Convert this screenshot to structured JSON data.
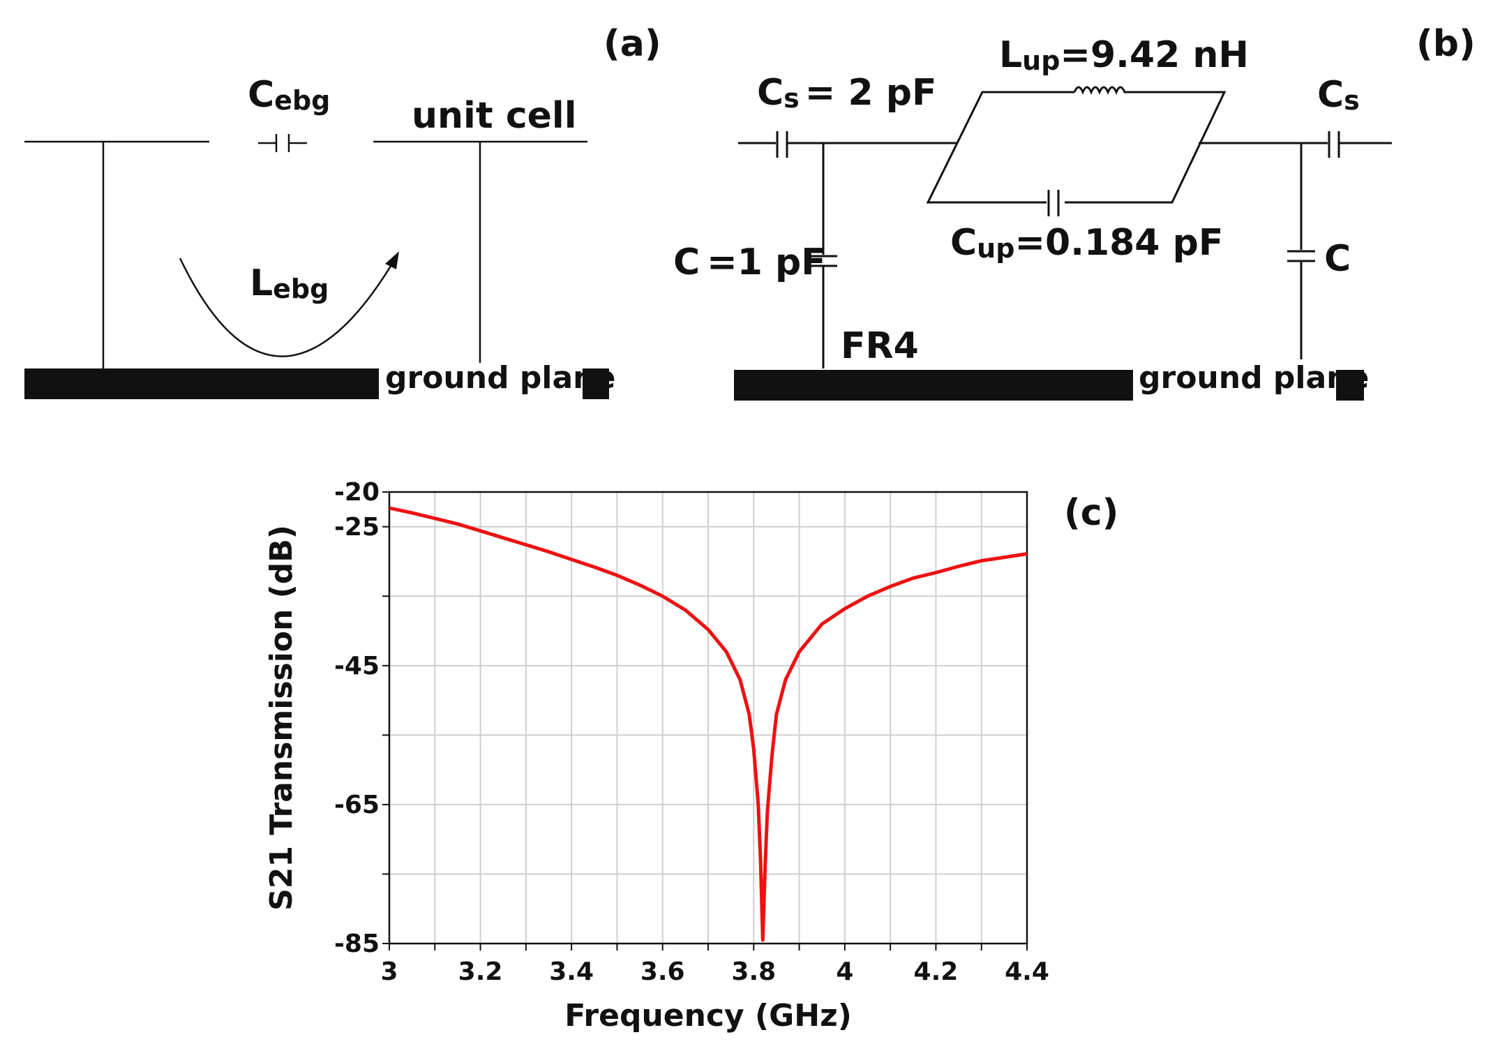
{
  "panel_a": {
    "tag": "(a)",
    "cap_label_main": "C",
    "cap_label_sub": "ebg",
    "ind_label_main": "L",
    "ind_label_sub": "ebg",
    "unit_cell": "unit cell",
    "ground": "ground plane"
  },
  "panel_b": {
    "tag": "(b)",
    "cs_main": "C",
    "cs_sub": "s",
    "cs_value": "= 2 pF",
    "lup_main": "L",
    "lup_sub": "up",
    "lup_value": "=9.42 nH",
    "cs2_main": "C",
    "cs2_sub": "s",
    "c_label": "C",
    "c_value": "=1 pF",
    "c2_label": "C",
    "cup_main": "C",
    "cup_sub": "up",
    "cup_value": "=0.184 pF",
    "substrate": "FR4",
    "ground": "ground plane"
  },
  "panel_c": {
    "tag": "(c)"
  },
  "chart_data": {
    "type": "line",
    "xlabel": "Frequency (GHz)",
    "ylabel": "S21 Transmission (dB)",
    "xlim": [
      3,
      4.4
    ],
    "ylim": [
      -85,
      -20
    ],
    "x_ticks": [
      "3",
      "3.2",
      "3.4",
      "3.6",
      "3.8",
      "4",
      "4.2",
      "4.4"
    ],
    "y_ticks": [
      "-20",
      "-25",
      "-45",
      "-65",
      "-85"
    ],
    "y_tick_values": [
      -20,
      -25,
      -45,
      -65,
      -85
    ],
    "grid": true,
    "series": [
      {
        "name": "S21",
        "color": "#ee1111",
        "x": [
          3.0,
          3.05,
          3.1,
          3.15,
          3.2,
          3.25,
          3.3,
          3.35,
          3.4,
          3.45,
          3.5,
          3.55,
          3.6,
          3.65,
          3.7,
          3.74,
          3.77,
          3.79,
          3.8,
          3.81,
          3.815,
          3.82,
          3.825,
          3.83,
          3.84,
          3.85,
          3.87,
          3.9,
          3.95,
          4.0,
          4.05,
          4.1,
          4.15,
          4.2,
          4.25,
          4.3,
          4.35,
          4.4
        ],
        "y": [
          -22.3,
          -23.0,
          -23.8,
          -24.6,
          -25.6,
          -26.6,
          -27.6,
          -28.6,
          -29.7,
          -30.8,
          -32.0,
          -33.4,
          -35.0,
          -37.0,
          -39.8,
          -43.0,
          -47.0,
          -52.0,
          -57.0,
          -65.0,
          -73.0,
          -84.5,
          -74.0,
          -66.0,
          -58.0,
          -52.0,
          -47.0,
          -43.0,
          -39.0,
          -36.8,
          -35.0,
          -33.6,
          -32.4,
          -31.6,
          -30.7,
          -29.9,
          -29.4,
          -28.9
        ]
      }
    ]
  }
}
